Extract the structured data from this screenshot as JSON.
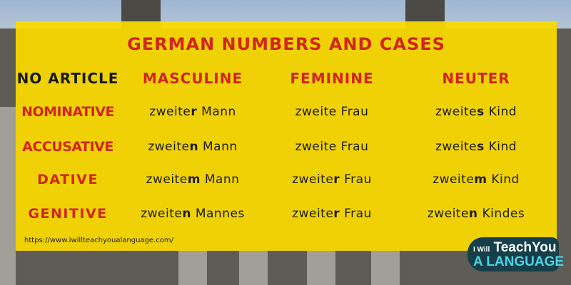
{
  "title": "GERMAN NUMBERS AND CASES",
  "headers": [
    "NO ARTICLE",
    "MASCULINE",
    "FEMININE",
    "NEUTER"
  ],
  "rows": [
    {
      "case": "NOMINATIVE",
      "cells": [
        {
          "stem": "zweite",
          "ending": "r",
          "noun": "Mann"
        },
        {
          "stem": "zweite",
          "ending": "",
          "noun": "Frau"
        },
        {
          "stem": "zweite",
          "ending": "s",
          "noun": "Kind"
        }
      ]
    },
    {
      "case": "ACCUSATIVE",
      "cells": [
        {
          "stem": "zweite",
          "ending": "n",
          "noun": "Mann"
        },
        {
          "stem": "zweite",
          "ending": "",
          "noun": "Frau"
        },
        {
          "stem": "zweite",
          "ending": "s",
          "noun": "Kind"
        }
      ]
    },
    {
      "case": "DATIVE",
      "cells": [
        {
          "stem": "zweite",
          "ending": "m",
          "noun": "Mann"
        },
        {
          "stem": "zweite",
          "ending": "r",
          "noun": "Frau"
        },
        {
          "stem": "zweite",
          "ending": "m",
          "noun": "Kind"
        }
      ]
    },
    {
      "case": "GENITIVE",
      "cells": [
        {
          "stem": "zweite",
          "ending": "n",
          "noun": "Mannes"
        },
        {
          "stem": "zweite",
          "ending": "r",
          "noun": "Frau"
        },
        {
          "stem": "zweite",
          "ending": "n",
          "noun": "Kindes"
        }
      ]
    }
  ],
  "url": "https://www.iwillteachyoualanguage.com/",
  "logo": {
    "line1_small": "I Will",
    "line1": "TeachYou",
    "line2": "A LANGUAGE"
  },
  "colors": {
    "panel": "#fada00",
    "accent": "#d1261c",
    "logo_bg": "#163f4a",
    "logo_accent": "#4fd3e6"
  }
}
